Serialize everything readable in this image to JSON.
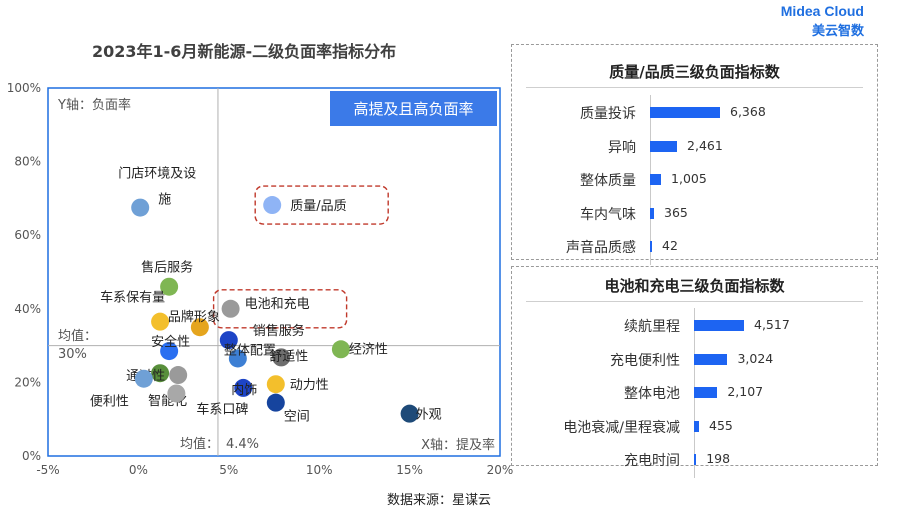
{
  "title": "2023年1-6月新能源-二级负面率指标分布",
  "brand": {
    "name_en": "Midea Cloud",
    "name_cn": "美云智数"
  },
  "source": "数据来源：星谋云",
  "chart_data": [
    {
      "type": "scatter",
      "x_axis_label": "X轴：提及率",
      "y_axis_label": "Y轴：负面率",
      "xlim": [
        -5,
        20
      ],
      "ylim": [
        0,
        100
      ],
      "x_ticks": [
        "-5%",
        "0%",
        "5%",
        "10%",
        "15%",
        "20%"
      ],
      "y_ticks": [
        "0%",
        "20%",
        "40%",
        "60%",
        "80%",
        "100%"
      ],
      "x_tick_values": [
        -5,
        0,
        5,
        10,
        15,
        20
      ],
      "y_tick_values": [
        0,
        20,
        40,
        60,
        80,
        100
      ],
      "x_mean": {
        "value": 4.4,
        "label_prefix": "均值：",
        "label_value": "4.4%"
      },
      "y_mean": {
        "value": 30,
        "label_prefix": "均值：",
        "label_value": "30%"
      },
      "quadrant_label": "高提及且高负面率",
      "points": [
        {
          "label": "门店环境及设施",
          "label_lines": [
            "门店环境及设",
            "施"
          ],
          "x": 0.1,
          "y": 67.5,
          "color": "#6fa0d6"
        },
        {
          "label": "质量/品质",
          "x": 7.4,
          "y": 68.2,
          "color": "#8fb4f5",
          "highlight": true
        },
        {
          "label": "售后服务",
          "x": 1.7,
          "y": 46,
          "color": "#7fb653"
        },
        {
          "label": "电池和充电",
          "x": 5.1,
          "y": 40,
          "color": "#9a9a9a",
          "highlight": true
        },
        {
          "label": "车系保有量",
          "x": 1.2,
          "y": 36.5,
          "color": "#f3bf2c"
        },
        {
          "label": "品牌形象",
          "x": 3.4,
          "y": 35,
          "color": "#e5a51e"
        },
        {
          "label": "销售服务",
          "x": 5.0,
          "y": 31.5,
          "color": "#1d44c6"
        },
        {
          "label": "安全性",
          "x": 1.7,
          "y": 28.5,
          "color": "#2a6ff0"
        },
        {
          "label": "经济性",
          "x": 11.2,
          "y": 29,
          "color": "#7fb653"
        },
        {
          "label": "舒适性",
          "x": 7.9,
          "y": 26.8,
          "color": "#6e6e6e"
        },
        {
          "label": "整体配置",
          "x": 5.5,
          "y": 26.5,
          "color": "#3d7fd4"
        },
        {
          "label": "通过性",
          "x": 1.2,
          "y": 22.5,
          "color": "#588f3b"
        },
        {
          "label": "便利性",
          "x": 0.3,
          "y": 21,
          "color": "#6fa0d6"
        },
        {
          "label": "智能化",
          "x": 2.2,
          "y": 22,
          "color": "#9a9a9a"
        },
        {
          "label": "内饰",
          "x": 5.8,
          "y": 18.5,
          "color": "#1d44c6"
        },
        {
          "label": "动力性",
          "x": 7.6,
          "y": 19.5,
          "color": "#f3bf2c"
        },
        {
          "label": "车系口碑",
          "x": 2.1,
          "y": 17,
          "color": "#a8a8a8"
        },
        {
          "label": "空间",
          "x": 7.6,
          "y": 14.5,
          "color": "#16449e"
        },
        {
          "label": "外观",
          "x": 15.0,
          "y": 11.5,
          "color": "#1e4a78"
        }
      ]
    },
    {
      "type": "bar",
      "orientation": "horizontal",
      "title": "质量/品质三级负面指标数",
      "categories": [
        "质量投诉",
        "异响",
        "整体质量",
        "车内气味",
        "声音品质感"
      ],
      "values": [
        6368,
        2461,
        1005,
        365,
        42
      ],
      "value_labels": [
        "6,368",
        "2,461",
        "1,005",
        "365",
        "42"
      ],
      "color": "#1d64f2"
    },
    {
      "type": "bar",
      "orientation": "horizontal",
      "title": "电池和充电三级负面指标数",
      "categories": [
        "续航里程",
        "充电便利性",
        "整体电池",
        "电池衰减/里程衰减",
        "充电时间"
      ],
      "values": [
        4517,
        3024,
        2107,
        455,
        198
      ],
      "value_labels": [
        "4,517",
        "3,024",
        "2,107",
        "455",
        "198"
      ],
      "color": "#1d64f2"
    }
  ]
}
